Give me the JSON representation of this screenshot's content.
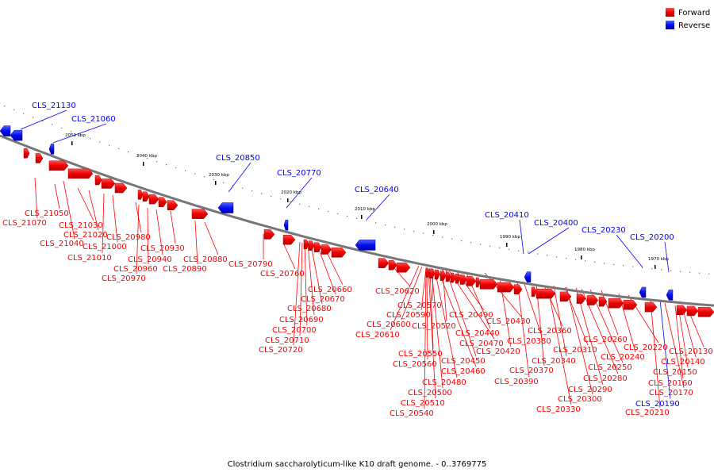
{
  "legend": [
    {
      "label": "Forward",
      "color": "#ff0000"
    },
    {
      "label": "Reverse",
      "color": "#0000ff"
    }
  ],
  "colors": {
    "forward": "#ff0000",
    "reverse": "#0000ff",
    "backbone": "#777777"
  },
  "caption": "Clostridium saccharolyticum-like K10 draft genome. - 0..3769775",
  "scale_labels": [
    "2050 kbp",
    "2040 kbp",
    "2030 kbp",
    "2020 kbp",
    "2010 kbp",
    "2000 kbp",
    "1990 kbp",
    "1980 kbp",
    "1970 kbp"
  ],
  "genes": [
    {
      "id": "CLS_21130",
      "strand": "reverse"
    },
    {
      "id": "CLS_21060",
      "strand": "reverse"
    },
    {
      "id": "CLS_20850",
      "strand": "reverse"
    },
    {
      "id": "CLS_20770",
      "strand": "reverse"
    },
    {
      "id": "CLS_20640",
      "strand": "reverse"
    },
    {
      "id": "CLS_20410",
      "strand": "reverse"
    },
    {
      "id": "CLS_20400",
      "strand": "reverse"
    },
    {
      "id": "CLS_20230",
      "strand": "reverse"
    },
    {
      "id": "CLS_20200",
      "strand": "reverse"
    },
    {
      "id": "CLS_20190",
      "strand": "reverse"
    },
    {
      "id": "CLS_21070",
      "strand": "forward"
    },
    {
      "id": "CLS_21050",
      "strand": "forward"
    },
    {
      "id": "CLS_21040",
      "strand": "forward"
    },
    {
      "id": "CLS_21030",
      "strand": "forward"
    },
    {
      "id": "CLS_21020",
      "strand": "forward"
    },
    {
      "id": "CLS_21010",
      "strand": "forward"
    },
    {
      "id": "CLS_21000",
      "strand": "forward"
    },
    {
      "id": "CLS_20980",
      "strand": "forward"
    },
    {
      "id": "CLS_20970",
      "strand": "forward"
    },
    {
      "id": "CLS_20960",
      "strand": "forward"
    },
    {
      "id": "CLS_20940",
      "strand": "forward"
    },
    {
      "id": "CLS_20930",
      "strand": "forward"
    },
    {
      "id": "CLS_20890",
      "strand": "forward"
    },
    {
      "id": "CLS_20880",
      "strand": "forward"
    },
    {
      "id": "CLS_20790",
      "strand": "forward"
    },
    {
      "id": "CLS_20760",
      "strand": "forward"
    },
    {
      "id": "CLS_20660",
      "strand": "forward"
    },
    {
      "id": "CLS_20670",
      "strand": "forward"
    },
    {
      "id": "CLS_20680",
      "strand": "forward"
    },
    {
      "id": "CLS_20690",
      "strand": "forward"
    },
    {
      "id": "CLS_20700",
      "strand": "forward"
    },
    {
      "id": "CLS_20710",
      "strand": "forward"
    },
    {
      "id": "CLS_20720",
      "strand": "forward"
    },
    {
      "id": "CLS_20620",
      "strand": "forward"
    },
    {
      "id": "CLS_20570",
      "strand": "forward"
    },
    {
      "id": "CLS_20590",
      "strand": "forward"
    },
    {
      "id": "CLS_20600",
      "strand": "forward"
    },
    {
      "id": "CLS_20610",
      "strand": "forward"
    },
    {
      "id": "CLS_20520",
      "strand": "forward"
    },
    {
      "id": "CLS_20490",
      "strand": "forward"
    },
    {
      "id": "CLS_20440",
      "strand": "forward"
    },
    {
      "id": "CLS_20430",
      "strand": "forward"
    },
    {
      "id": "CLS_20470",
      "strand": "forward"
    },
    {
      "id": "CLS_20420",
      "strand": "forward"
    },
    {
      "id": "CLS_20550",
      "strand": "forward"
    },
    {
      "id": "CLS_20560",
      "strand": "forward"
    },
    {
      "id": "CLS_20450",
      "strand": "forward"
    },
    {
      "id": "CLS_20460",
      "strand": "forward"
    },
    {
      "id": "CLS_20480",
      "strand": "forward"
    },
    {
      "id": "CLS_20500",
      "strand": "forward"
    },
    {
      "id": "CLS_20510",
      "strand": "forward"
    },
    {
      "id": "CLS_20540",
      "strand": "forward"
    },
    {
      "id": "CLS_20380",
      "strand": "forward"
    },
    {
      "id": "CLS_20360",
      "strand": "forward"
    },
    {
      "id": "CLS_20370",
      "strand": "forward"
    },
    {
      "id": "CLS_20390",
      "strand": "forward"
    },
    {
      "id": "CLS_20340",
      "strand": "forward"
    },
    {
      "id": "CLS_20310",
      "strand": "forward"
    },
    {
      "id": "CLS_20330",
      "strand": "forward"
    },
    {
      "id": "CLS_20300",
      "strand": "forward"
    },
    {
      "id": "CLS_20290",
      "strand": "forward"
    },
    {
      "id": "CLS_20280",
      "strand": "forward"
    },
    {
      "id": "CLS_20260",
      "strand": "forward"
    },
    {
      "id": "CLS_20250",
      "strand": "forward"
    },
    {
      "id": "CLS_20240",
      "strand": "forward"
    },
    {
      "id": "CLS_20220",
      "strand": "forward"
    },
    {
      "id": "CLS_20210",
      "strand": "forward"
    },
    {
      "id": "CLS_20170",
      "strand": "forward"
    },
    {
      "id": "CLS_20160",
      "strand": "forward"
    },
    {
      "id": "CLS_20150",
      "strand": "forward"
    },
    {
      "id": "CLS_20140",
      "strand": "forward"
    },
    {
      "id": "CLS_20130",
      "strand": "forward"
    }
  ]
}
